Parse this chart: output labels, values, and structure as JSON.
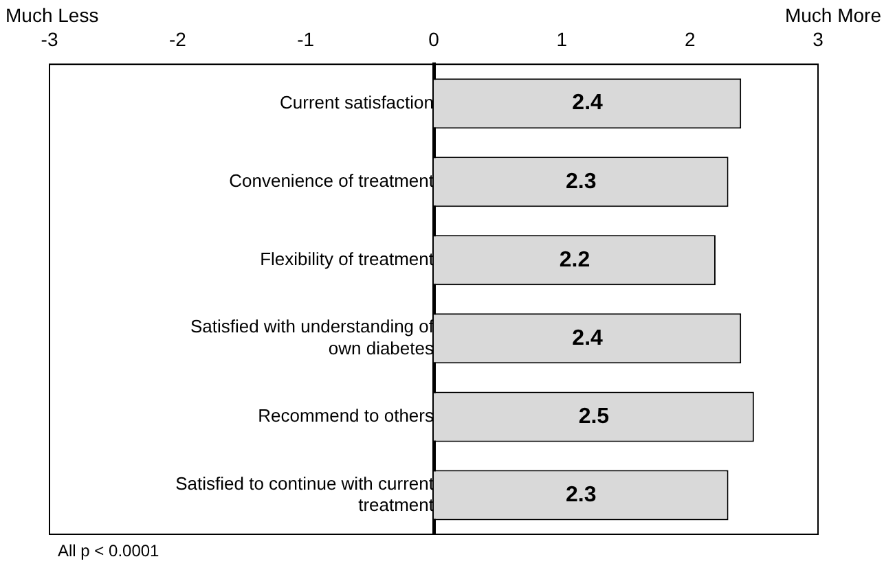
{
  "chart_data": {
    "type": "bar",
    "orientation": "horizontal",
    "categories": [
      "Current satisfaction",
      "Convenience of treatment",
      "Flexibility of treatment",
      "Satisfied with understanding of own diabetes",
      "Recommend to others",
      "Satisfied to continue with current treatment"
    ],
    "values": [
      2.4,
      2.3,
      2.2,
      2.4,
      2.5,
      2.3
    ],
    "color": "#d9d9d9",
    "data_labels": true,
    "xlim": [
      -3,
      3
    ],
    "xticks": [
      -3,
      -2,
      -1,
      0,
      1,
      2,
      3
    ],
    "grid": false,
    "legend": false,
    "annotations": [
      "Much Less",
      "Much More",
      "All p < 0.0001"
    ]
  }
}
